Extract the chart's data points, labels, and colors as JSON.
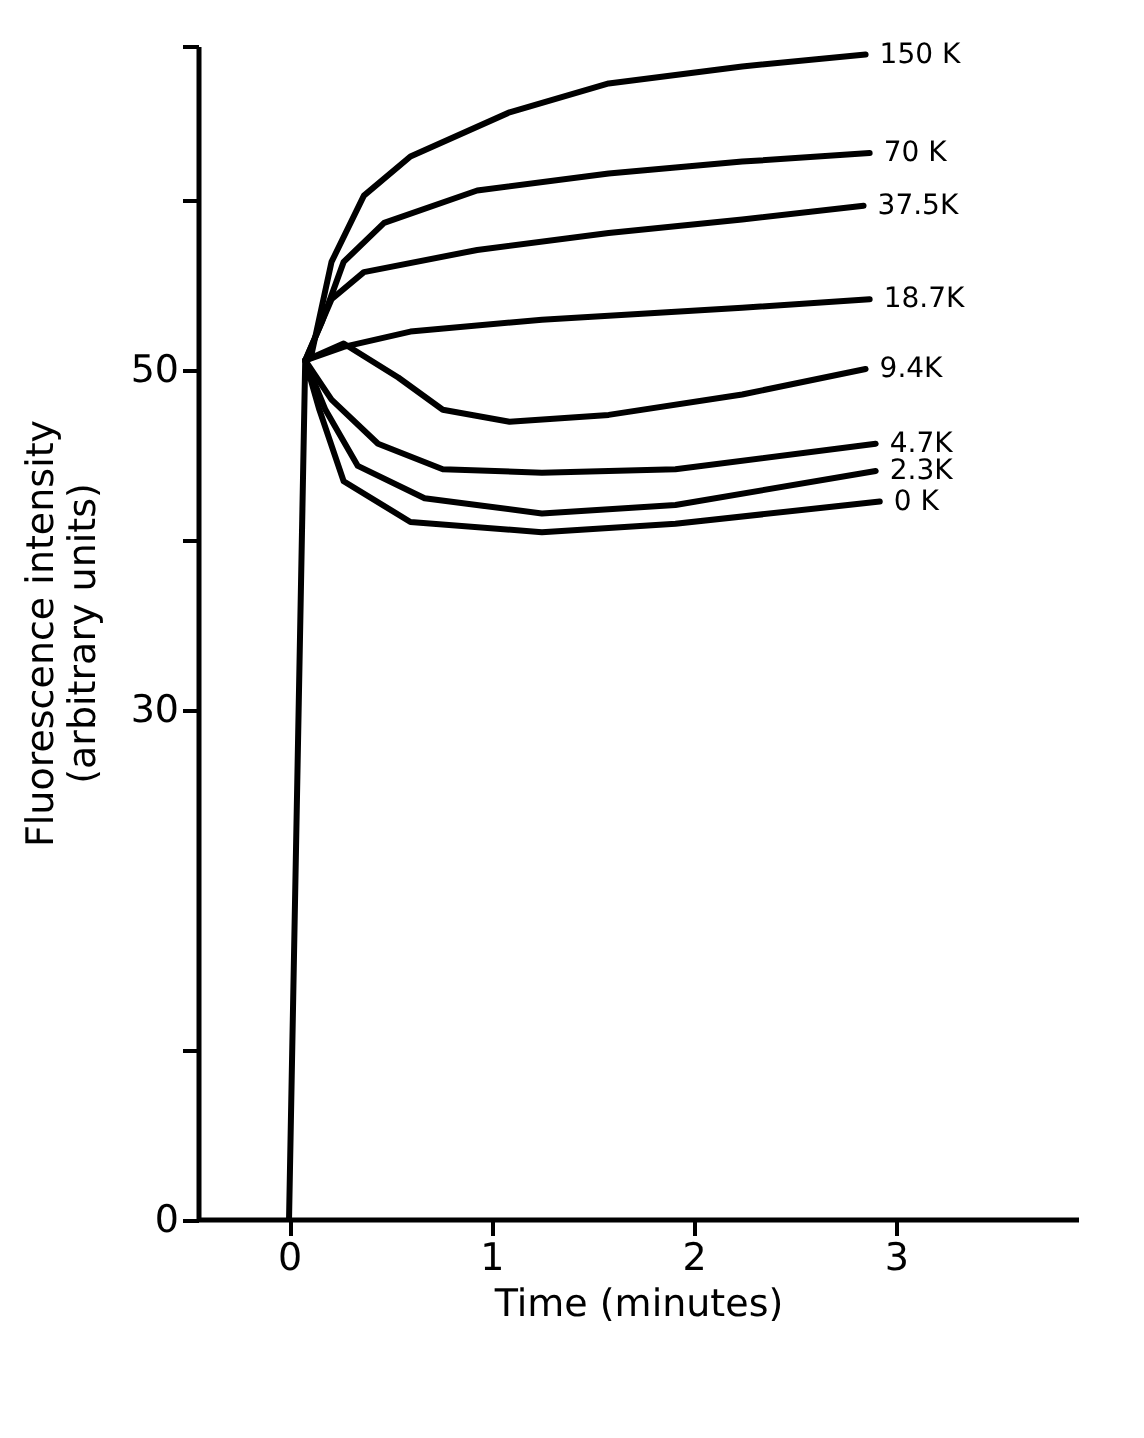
{
  "chart_data": {
    "type": "line",
    "ylabel": "Fluorescence intensity\n(arbitrary units)",
    "xlabel": "Time (minutes)",
    "xlim": [
      -0.45,
      3.9
    ],
    "xticks": [
      0,
      1,
      2,
      3
    ],
    "ylim": [
      0,
      69
    ],
    "yticks": [
      0,
      {
        "value": 10,
        "label": null
      },
      30,
      {
        "value": 40,
        "label": null
      },
      50,
      {
        "value": 60,
        "label": null
      },
      {
        "value": 69,
        "label": null
      }
    ],
    "grid": false,
    "series": [
      {
        "name": "150 K",
        "color": "#000000",
        "x": [
          0.08,
          0.11,
          0.21,
          0.37,
          0.6,
          1.09,
          1.58,
          2.24,
          2.85
        ],
        "values": [
          50.5,
          50.8,
          56.3,
          60.2,
          62.5,
          65.1,
          66.8,
          67.8,
          68.5
        ]
      },
      {
        "name": "70 K",
        "color": "#000000",
        "x": [
          0.08,
          0.16,
          0.27,
          0.47,
          0.93,
          1.58,
          2.24,
          2.87
        ],
        "values": [
          50.5,
          52.7,
          56.3,
          58.6,
          60.5,
          61.5,
          62.2,
          62.7
        ]
      },
      {
        "name": "37.5K",
        "color": "#000000",
        "x": [
          0.08,
          0.21,
          0.37,
          0.93,
          1.58,
          2.24,
          2.84
        ],
        "values": [
          50.5,
          54.1,
          55.7,
          57.0,
          58.0,
          58.8,
          59.6
        ]
      },
      {
        "name": "18.7K",
        "color": "#000000",
        "x": [
          0.08,
          0.27,
          0.6,
          1.25,
          2.24,
          2.87
        ],
        "values": [
          50.5,
          51.3,
          52.2,
          52.9,
          53.6,
          54.1
        ]
      },
      {
        "name": "9.4K",
        "color": "#000000",
        "x": [
          0.08,
          0.27,
          0.54,
          0.76,
          1.09,
          1.58,
          2.24,
          2.85
        ],
        "values": [
          50.5,
          51.5,
          49.5,
          47.6,
          46.9,
          47.3,
          48.5,
          50.0
        ]
      },
      {
        "name": "4.7K",
        "color": "#000000",
        "x": [
          0.08,
          0.21,
          0.44,
          0.76,
          1.25,
          1.91,
          2.9
        ],
        "values": [
          50.5,
          48.2,
          45.6,
          44.1,
          43.9,
          44.1,
          45.6
        ]
      },
      {
        "name": "2.3K",
        "color": "#000000",
        "x": [
          0.08,
          0.18,
          0.34,
          0.67,
          1.25,
          1.91,
          2.9
        ],
        "values": [
          50.5,
          47.6,
          44.3,
          42.4,
          41.5,
          42.0,
          44.0
        ]
      },
      {
        "name": "0 K",
        "color": "#000000",
        "x": [
          0,
          0.08,
          0.15,
          0.27,
          0.6,
          1.25,
          1.91,
          2.92
        ],
        "values": [
          0,
          50.5,
          47.6,
          43.4,
          41.0,
          40.4,
          40.9,
          42.2
        ]
      }
    ]
  }
}
